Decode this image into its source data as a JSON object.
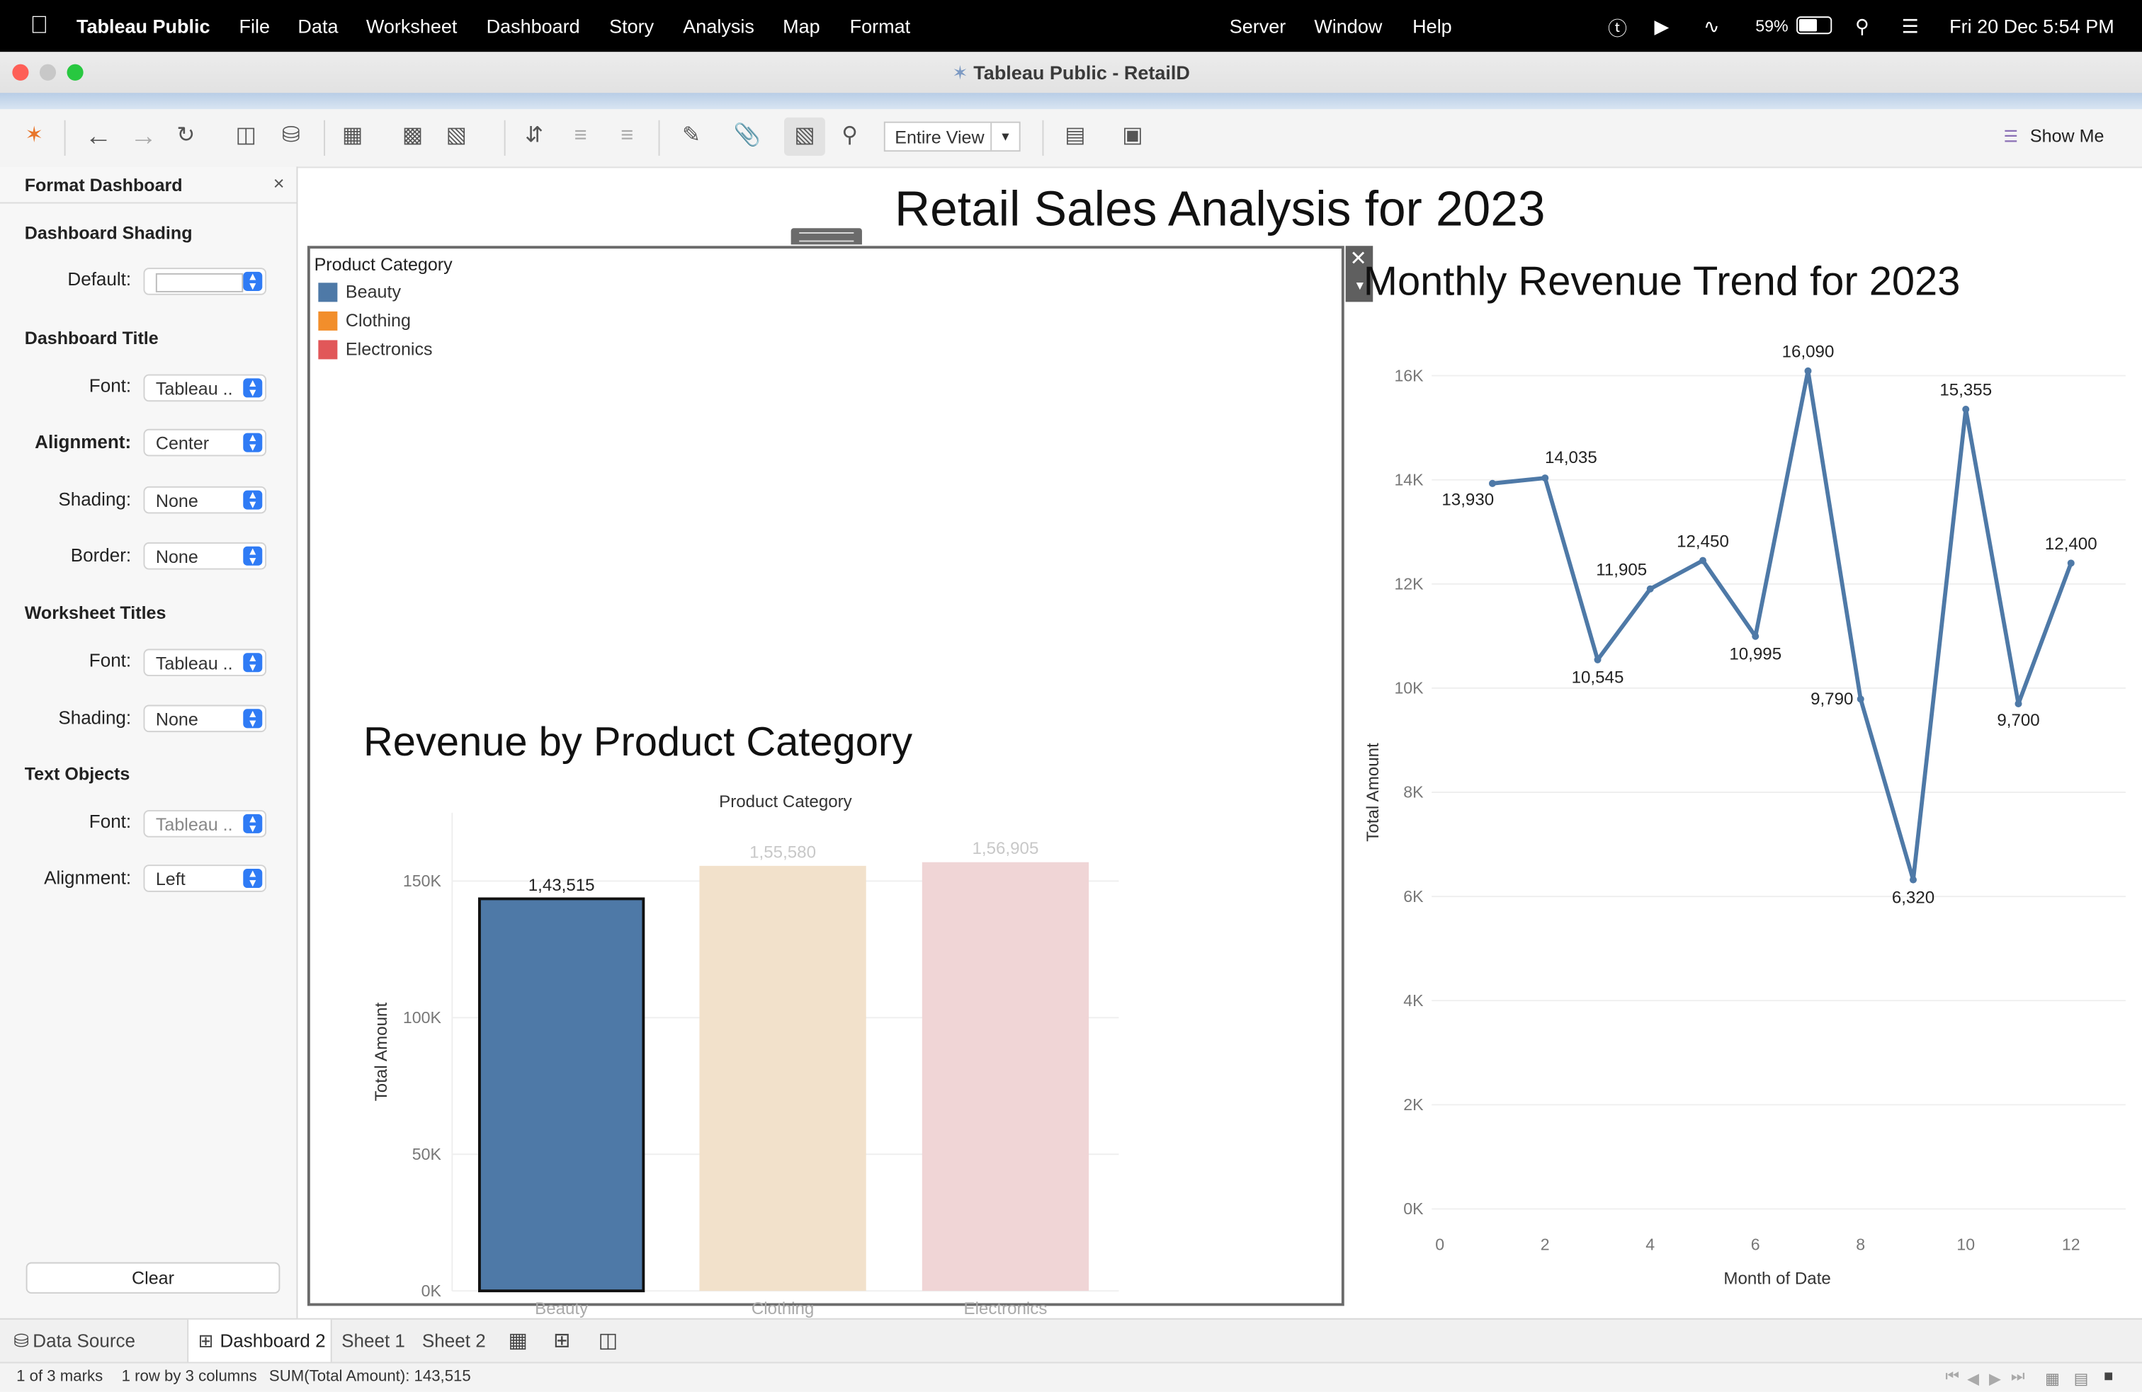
{
  "menubar": {
    "app_name": "Tableau Public",
    "items": [
      "File",
      "Data",
      "Worksheet",
      "Dashboard",
      "Story",
      "Analysis",
      "Map",
      "Format"
    ],
    "right_items": [
      "Server",
      "Window",
      "Help"
    ],
    "battery": "59%",
    "datetime": "Fri 20 Dec  5:54 PM"
  },
  "window": {
    "title": "Tableau Public - RetailD"
  },
  "toolbar": {
    "view_select": "Entire View",
    "show_me": "Show Me"
  },
  "format_panel": {
    "title": "Format Dashboard",
    "close": "×",
    "sections": {
      "shading": "Dashboard Shading",
      "dash_title": "Dashboard Title",
      "ws_titles": "Worksheet Titles",
      "text_objects": "Text Objects"
    },
    "rows": {
      "default_label": "Default:",
      "default_value": "",
      "dt_font_label": "Font:",
      "dt_font_value": "Tableau ..",
      "dt_align_label": "Alignment:",
      "dt_align_value": "Center",
      "dt_shading_label": "Shading:",
      "dt_shading_value": "None",
      "dt_border_label": "Border:",
      "dt_border_value": "None",
      "wt_font_label": "Font:",
      "wt_font_value": "Tableau ..",
      "wt_shading_label": "Shading:",
      "wt_shading_value": "None",
      "to_font_label": "Font:",
      "to_font_value": "Tableau ..",
      "to_align_label": "Alignment:",
      "to_align_value": "Left"
    },
    "clear": "Clear"
  },
  "dashboard": {
    "title": "Retail Sales Analysis for 2023"
  },
  "legend": {
    "title": "Product Category",
    "items": [
      {
        "label": "Beauty",
        "color": "#4e79a7"
      },
      {
        "label": "Clothing",
        "color": "#f28e2b"
      },
      {
        "label": "Electronics",
        "color": "#e15759"
      }
    ]
  },
  "tabs": {
    "data_source": "Data Source",
    "dashboard2": "Dashboard 2",
    "sheet1": "Sheet 1",
    "sheet2": "Sheet 2"
  },
  "status": {
    "marks": "1 of 3 marks",
    "dims": "1 row by 3 columns",
    "sum": "SUM(Total Amount): 143,515"
  },
  "chart_data": [
    {
      "type": "bar",
      "title": "Revenue by Product Category",
      "top_label": "Product Category",
      "ylabel": "Total Amount",
      "categories": [
        "Beauty",
        "Clothing",
        "Electronics"
      ],
      "values": [
        143515,
        155580,
        156905
      ],
      "value_labels": [
        "1,43,515",
        "1,55,580",
        "1,56,905"
      ],
      "colors": [
        "#4e79a7",
        "#f2e1cb",
        "#f0d5d6"
      ],
      "selected": "Beauty",
      "yticks": [
        "0K",
        "50K",
        "100K",
        "150K"
      ],
      "ylim": [
        0,
        150000
      ]
    },
    {
      "type": "line",
      "title": "Monthly Revenue Trend for 2023",
      "xlabel": "Month of Date",
      "ylabel": "Total Amount",
      "x": [
        1,
        2,
        3,
        4,
        5,
        6,
        7,
        8,
        9,
        10,
        11,
        12
      ],
      "y": [
        13930,
        14035,
        10545,
        11905,
        12450,
        10995,
        16090,
        9790,
        6320,
        15355,
        9700,
        12400
      ],
      "point_labels": [
        "13,930",
        "14,035",
        "10,545",
        "11,905",
        "12,450",
        "10,995",
        "16,090",
        "9,790",
        "6,320",
        "15,355",
        "9,700",
        "12,400"
      ],
      "xticks": [
        "0",
        "2",
        "4",
        "6",
        "8",
        "10",
        "12"
      ],
      "yticks": [
        "0K",
        "2K",
        "4K",
        "6K",
        "8K",
        "10K",
        "12K",
        "14K",
        "16K"
      ],
      "xlim": [
        0,
        12
      ],
      "ylim": [
        0,
        16000
      ],
      "color": "#4e79a7"
    }
  ]
}
